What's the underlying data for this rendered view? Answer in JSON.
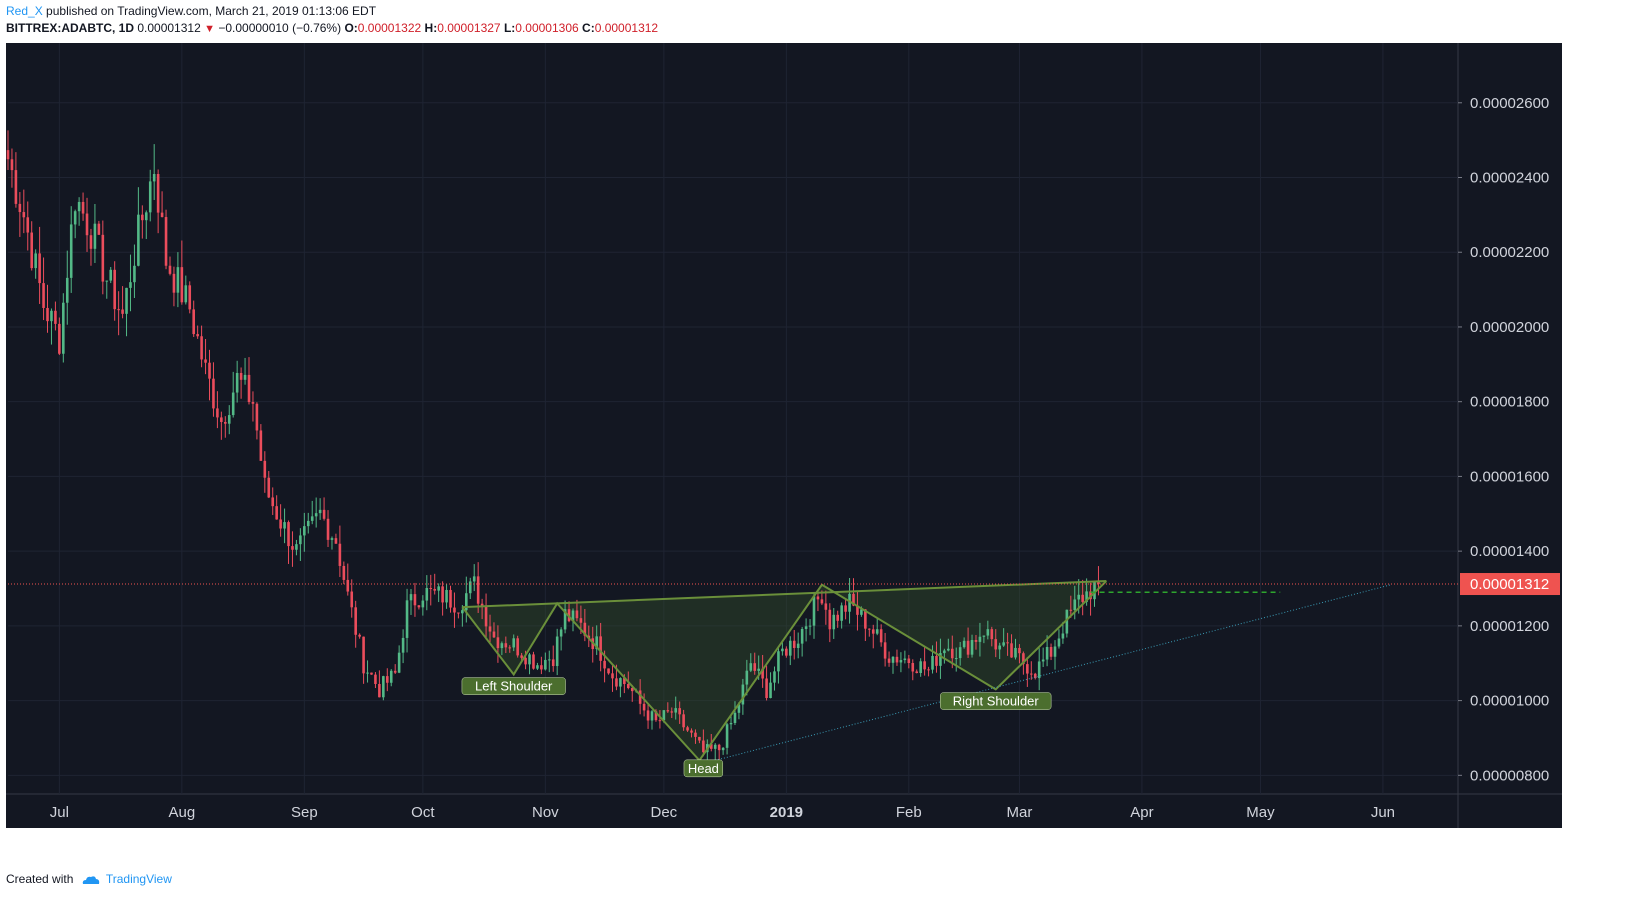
{
  "header": {
    "user": "Red_X",
    "published_text": "published on TradingView.com, March 21, 2019 01:13:06 EDT",
    "symbol": "BITTREX:ADABTC, 1D",
    "last": "0.00001312",
    "change_arrow": "▼",
    "change": "−0.00000010 (−0.76%)",
    "o_label": "O:",
    "o_value": "0.00001322",
    "h_label": "H:",
    "h_value": "0.00001327",
    "l_label": "L:",
    "l_value": "0.00001306",
    "c_label": "C:",
    "c_value": "0.00001312"
  },
  "footer": {
    "created_with": "Created with",
    "brand": "TradingView",
    "logo_icon": "tradingview-cloud-icon"
  },
  "colors": {
    "background": "#131722",
    "grid": "#1f2433",
    "up": "#53b987",
    "down": "#eb4d5c",
    "pattern_line": "#6a8f3a",
    "pattern_fill": "#3a5a2a",
    "label_bg": "#4b6e2e",
    "last_price": "#ef5350",
    "trendline": "#3a9bb5",
    "target_line": "#2ea52e"
  },
  "chart_data": {
    "type": "candlestick",
    "symbol": "BITTREX:ADABTC",
    "interval": "1D",
    "ylim": [
      7.5e-06,
      2.76e-05
    ],
    "y_ticks": [
      {
        "value": 8e-06,
        "label": "0.00000800"
      },
      {
        "value": 1e-05,
        "label": "0.00001000"
      },
      {
        "value": 1.2e-05,
        "label": "0.00001200"
      },
      {
        "value": 1.4e-05,
        "label": "0.00001400"
      },
      {
        "value": 1.6e-05,
        "label": "0.00001600"
      },
      {
        "value": 1.8e-05,
        "label": "0.00001800"
      },
      {
        "value": 2e-05,
        "label": "0.00002000"
      },
      {
        "value": 2.2e-05,
        "label": "0.00002200"
      },
      {
        "value": 2.4e-05,
        "label": "0.00002400"
      },
      {
        "value": 2.6e-05,
        "label": "0.00002600"
      }
    ],
    "xlim": [
      "2018-06-18",
      "2019-06-20"
    ],
    "x_ticks": [
      {
        "date": "2018-07-01",
        "label": "Jul",
        "bold": false
      },
      {
        "date": "2018-08-01",
        "label": "Aug",
        "bold": false
      },
      {
        "date": "2018-09-01",
        "label": "Sep",
        "bold": false
      },
      {
        "date": "2018-10-01",
        "label": "Oct",
        "bold": false
      },
      {
        "date": "2018-11-01",
        "label": "Nov",
        "bold": false
      },
      {
        "date": "2018-12-01",
        "label": "Dec",
        "bold": false
      },
      {
        "date": "2019-01-01",
        "label": "2019",
        "bold": true
      },
      {
        "date": "2019-02-01",
        "label": "Feb",
        "bold": false
      },
      {
        "date": "2019-03-01",
        "label": "Mar",
        "bold": false
      },
      {
        "date": "2019-04-01",
        "label": "Apr",
        "bold": false
      },
      {
        "date": "2019-05-01",
        "label": "May",
        "bold": false
      },
      {
        "date": "2019-06-01",
        "label": "Jun",
        "bold": false
      }
    ],
    "close_series": {
      "start": "2018-06-18",
      "end": "2019-03-21",
      "anchors": [
        [
          "2018-06-18",
          2.45e-05
        ],
        [
          "2018-06-22",
          2.3e-05
        ],
        [
          "2018-06-27",
          2.06e-05
        ],
        [
          "2018-07-01",
          1.97e-05
        ],
        [
          "2018-07-05",
          2.35e-05
        ],
        [
          "2018-07-09",
          2.26e-05
        ],
        [
          "2018-07-13",
          2.13e-05
        ],
        [
          "2018-07-17",
          2.03e-05
        ],
        [
          "2018-07-20",
          2.2e-05
        ],
        [
          "2018-07-25",
          2.43e-05
        ],
        [
          "2018-07-28",
          2.18e-05
        ],
        [
          "2018-08-03",
          2.05e-05
        ],
        [
          "2018-08-07",
          1.88e-05
        ],
        [
          "2018-08-11",
          1.75e-05
        ],
        [
          "2018-08-15",
          1.86e-05
        ],
        [
          "2018-08-19",
          1.8e-05
        ],
        [
          "2018-08-22",
          1.57e-05
        ],
        [
          "2018-08-26",
          1.48e-05
        ],
        [
          "2018-08-30",
          1.4e-05
        ],
        [
          "2018-09-05",
          1.5e-05
        ],
        [
          "2018-09-09",
          1.43e-05
        ],
        [
          "2018-09-12",
          1.28e-05
        ],
        [
          "2018-09-16",
          1.1e-05
        ],
        [
          "2018-09-20",
          1.03e-05
        ],
        [
          "2018-09-24",
          1.07e-05
        ],
        [
          "2018-09-27",
          1.25e-05
        ],
        [
          "2018-10-01",
          1.29e-05
        ],
        [
          "2018-10-06",
          1.28e-05
        ],
        [
          "2018-10-10",
          1.26e-05
        ],
        [
          "2018-10-14",
          1.31e-05
        ],
        [
          "2018-10-19",
          1.17e-05
        ],
        [
          "2018-10-24",
          1.15e-05
        ],
        [
          "2018-10-30",
          1.1e-05
        ],
        [
          "2018-11-03",
          1.12e-05
        ],
        [
          "2018-11-06",
          1.23e-05
        ],
        [
          "2018-11-10",
          1.2e-05
        ],
        [
          "2018-11-14",
          1.15e-05
        ],
        [
          "2018-11-18",
          1.07e-05
        ],
        [
          "2018-11-22",
          1.04e-05
        ],
        [
          "2018-11-25",
          9.9e-06
        ],
        [
          "2018-11-29",
          9.4e-06
        ],
        [
          "2018-12-03",
          9.7e-06
        ],
        [
          "2018-12-07",
          9.2e-06
        ],
        [
          "2018-12-11",
          8.6e-06
        ],
        [
          "2018-12-15",
          8.7e-06
        ],
        [
          "2018-12-19",
          9.6e-06
        ],
        [
          "2018-12-23",
          1.1e-05
        ],
        [
          "2018-12-27",
          1.03e-05
        ],
        [
          "2018-12-31",
          1.13e-05
        ],
        [
          "2019-01-04",
          1.17e-05
        ],
        [
          "2019-01-10",
          1.29e-05
        ],
        [
          "2019-01-12",
          1.21e-05
        ],
        [
          "2019-01-17",
          1.26e-05
        ],
        [
          "2019-01-22",
          1.2e-05
        ],
        [
          "2019-01-27",
          1.12e-05
        ],
        [
          "2019-02-01",
          1.11e-05
        ],
        [
          "2019-02-06",
          1.08e-05
        ],
        [
          "2019-02-10",
          1.15e-05
        ],
        [
          "2019-02-14",
          1.13e-05
        ],
        [
          "2019-02-20",
          1.19e-05
        ],
        [
          "2019-02-24",
          1.14e-05
        ],
        [
          "2019-03-01",
          1.11e-05
        ],
        [
          "2019-03-05",
          1.08e-05
        ],
        [
          "2019-03-09",
          1.13e-05
        ],
        [
          "2019-03-12",
          1.2e-05
        ],
        [
          "2019-03-16",
          1.27e-05
        ],
        [
          "2019-03-21",
          1.312e-05
        ]
      ]
    },
    "last_price": {
      "value": 1.312e-05,
      "label": "0.00001312"
    },
    "pattern": {
      "name": "inverse head and shoulders",
      "zigzag": [
        [
          "2018-10-11",
          1.25e-05
        ],
        [
          "2018-10-24",
          1.07e-05
        ],
        [
          "2018-11-04",
          1.26e-05
        ],
        [
          "2018-12-10",
          8.4e-06
        ],
        [
          "2019-01-10",
          1.31e-05
        ],
        [
          "2019-02-23",
          1.03e-05
        ],
        [
          "2019-03-23",
          1.32e-05
        ]
      ],
      "neckline": [
        [
          "2018-10-11",
          1.25e-05
        ],
        [
          "2019-03-23",
          1.32e-05
        ]
      ],
      "labels": [
        {
          "text": "Left Shoulder",
          "date": "2018-10-24",
          "value": 1.04e-05
        },
        {
          "text": "Head",
          "date": "2018-12-11",
          "value": 8.2e-06
        },
        {
          "text": "Right Shoulder",
          "date": "2019-02-23",
          "value": 1e-05
        }
      ]
    },
    "support_trendline": [
      [
        "2018-12-14",
        8.4e-06
      ],
      [
        "2019-06-03",
        1.31e-05
      ]
    ],
    "target_line": {
      "from": "2019-03-19",
      "to": "2019-05-06",
      "value": 1.29e-05
    }
  }
}
